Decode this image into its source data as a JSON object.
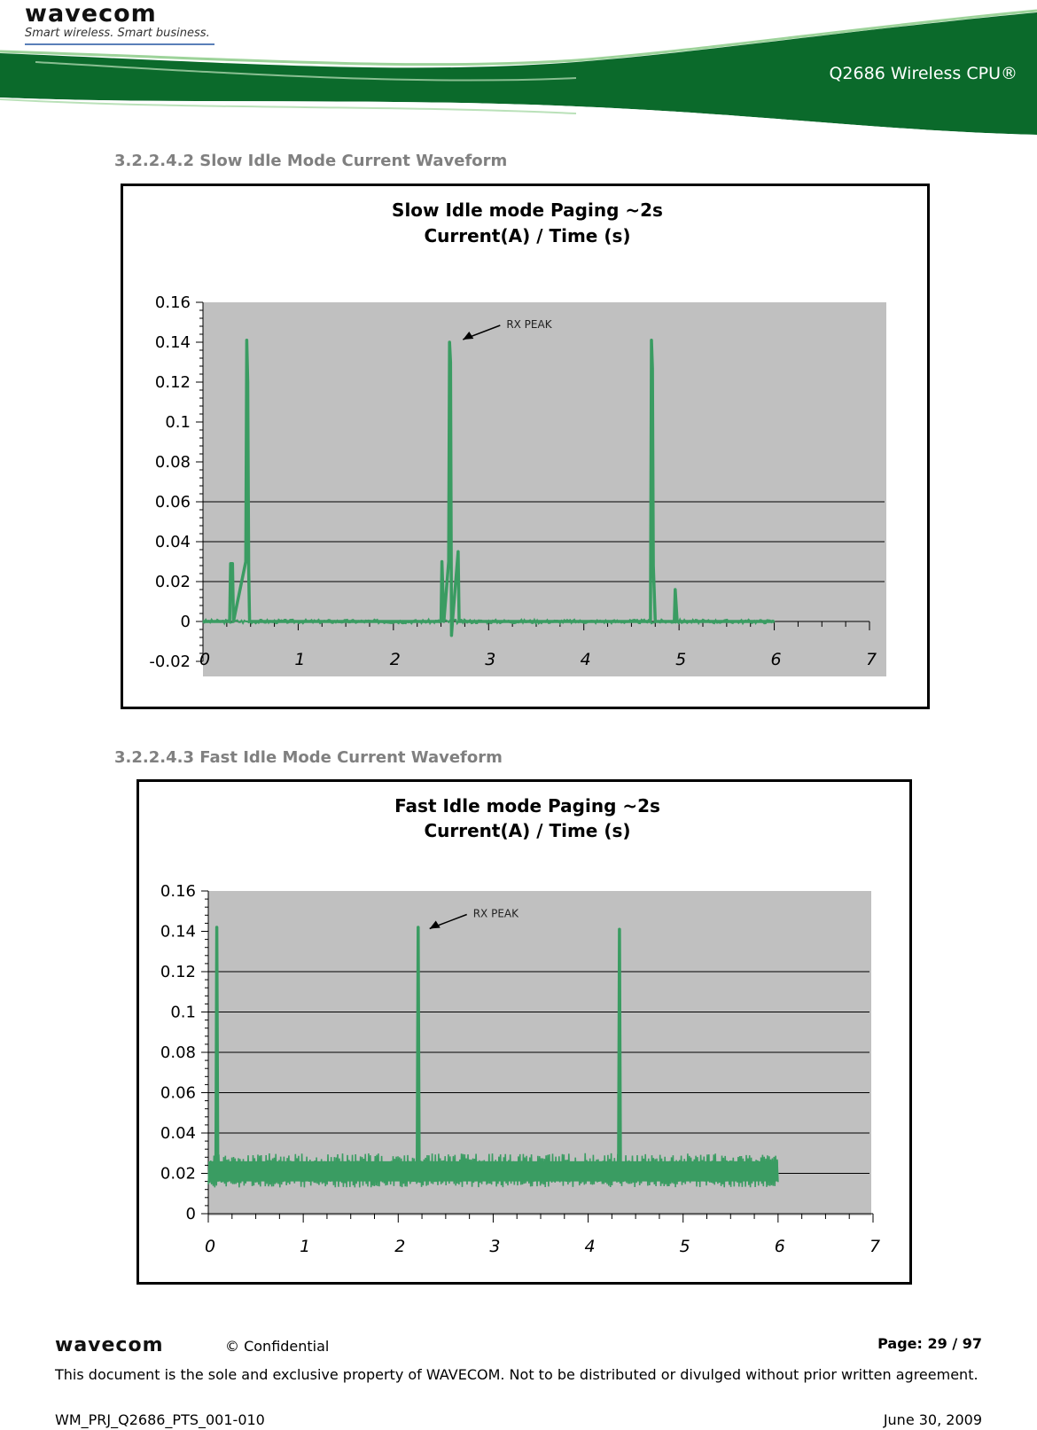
{
  "header": {
    "logo_text": "wavecom",
    "logo_tagline": "Smart wireless. Smart business.",
    "product_name": "Q2686 Wireless CPU®",
    "colors": {
      "brand_green": "#0b6a2b",
      "light_green": "#7dbf7f"
    }
  },
  "sections": [
    {
      "number": "3.2.2.4.2",
      "title": "Slow Idle Mode Current Waveform",
      "heading": "3.2.2.4.2  Slow Idle Mode Current Waveform"
    },
    {
      "number": "3.2.2.4.3",
      "title": "Fast Idle Mode Current Waveform",
      "heading": "3.2.2.4.3  Fast Idle Mode Current Waveform"
    }
  ],
  "chart_data": [
    {
      "type": "line",
      "title_line1": "Slow Idle mode    Paging ~2s",
      "title_line2": "Current(A) / Time (s)",
      "xlabel": "",
      "ylabel": "",
      "xlim": [
        0,
        7
      ],
      "ylim": [
        -0.02,
        0.16
      ],
      "y_ticks": [
        "0.16",
        "0.14",
        "0.12",
        "0.1",
        "0.08",
        "0.06",
        "0.04",
        "0.02",
        "0",
        "-0.02"
      ],
      "x_ticks": [
        "0",
        "1",
        "2",
        "3",
        "4",
        "5",
        "6",
        "7"
      ],
      "grid": "horizontal lines at 0.02, 0.04, 0.06",
      "plot_background": "#c0c0c0",
      "series_color": "#3a9c62",
      "annotation": {
        "text": "RX PEAK",
        "points_to": {
          "x": 2.6,
          "y": 0.14
        }
      },
      "series": [
        {
          "x": [
            0.0,
            0.28,
            0.29,
            0.31,
            0.32,
            0.45,
            0.46,
            0.47,
            0.48,
            0.49,
            0.5,
            2.5,
            2.51,
            2.53,
            2.58,
            2.59,
            2.6,
            2.61,
            2.62,
            2.68,
            2.69,
            2.7,
            4.7,
            4.71,
            4.72,
            4.73,
            4.75,
            4.95,
            4.96,
            4.98,
            6.0
          ],
          "y": [
            0.0,
            0.0,
            0.029,
            0.029,
            0.0,
            0.03,
            0.141,
            0.12,
            0.025,
            0.0,
            0.0,
            0.0,
            0.03,
            0.0,
            0.03,
            0.14,
            0.13,
            -0.007,
            0.0,
            0.035,
            0.0,
            0.0,
            0.0,
            0.141,
            0.127,
            0.028,
            0.0,
            0.0,
            0.016,
            0.0,
            0.0
          ]
        }
      ]
    },
    {
      "type": "line",
      "title_line1": "Fast Idle mode    Paging ~2s",
      "title_line2": "Current(A) / Time (s)",
      "xlabel": "",
      "ylabel": "",
      "xlim": [
        0,
        7
      ],
      "ylim": [
        0,
        0.16
      ],
      "y_ticks": [
        "0.16",
        "0.14",
        "0.12",
        "0.1",
        "0.08",
        "0.06",
        "0.04",
        "0.02",
        "0"
      ],
      "x_ticks": [
        "0",
        "1",
        "2",
        "3",
        "4",
        "5",
        "6",
        "7"
      ],
      "grid": "horizontal lines at 0.02–0.12",
      "plot_background": "#c0c0c0",
      "series_color": "#3a9c62",
      "annotation": {
        "text": "RX PEAK",
        "points_to": {
          "x": 2.2,
          "y": 0.14
        }
      },
      "noise_band": [
        0.013,
        0.03
      ],
      "series": [
        {
          "x": [
            0.0,
            0.08,
            0.09,
            0.1,
            2.2,
            2.21,
            2.22,
            4.32,
            4.33,
            4.34,
            6.0
          ],
          "y": [
            0.02,
            0.02,
            0.142,
            0.02,
            0.02,
            0.142,
            0.02,
            0.02,
            0.141,
            0.02,
            0.02
          ]
        }
      ]
    }
  ],
  "footer": {
    "logo_text": "wavecom",
    "confidential": "© Confidential",
    "page": "Page: 29 / 97",
    "notice": "This document is the sole and exclusive property of WAVECOM. Not to be distributed or divulged without prior written agreement.",
    "doc_id": "WM_PRJ_Q2686_PTS_001-010",
    "date": "June 30, 2009"
  }
}
